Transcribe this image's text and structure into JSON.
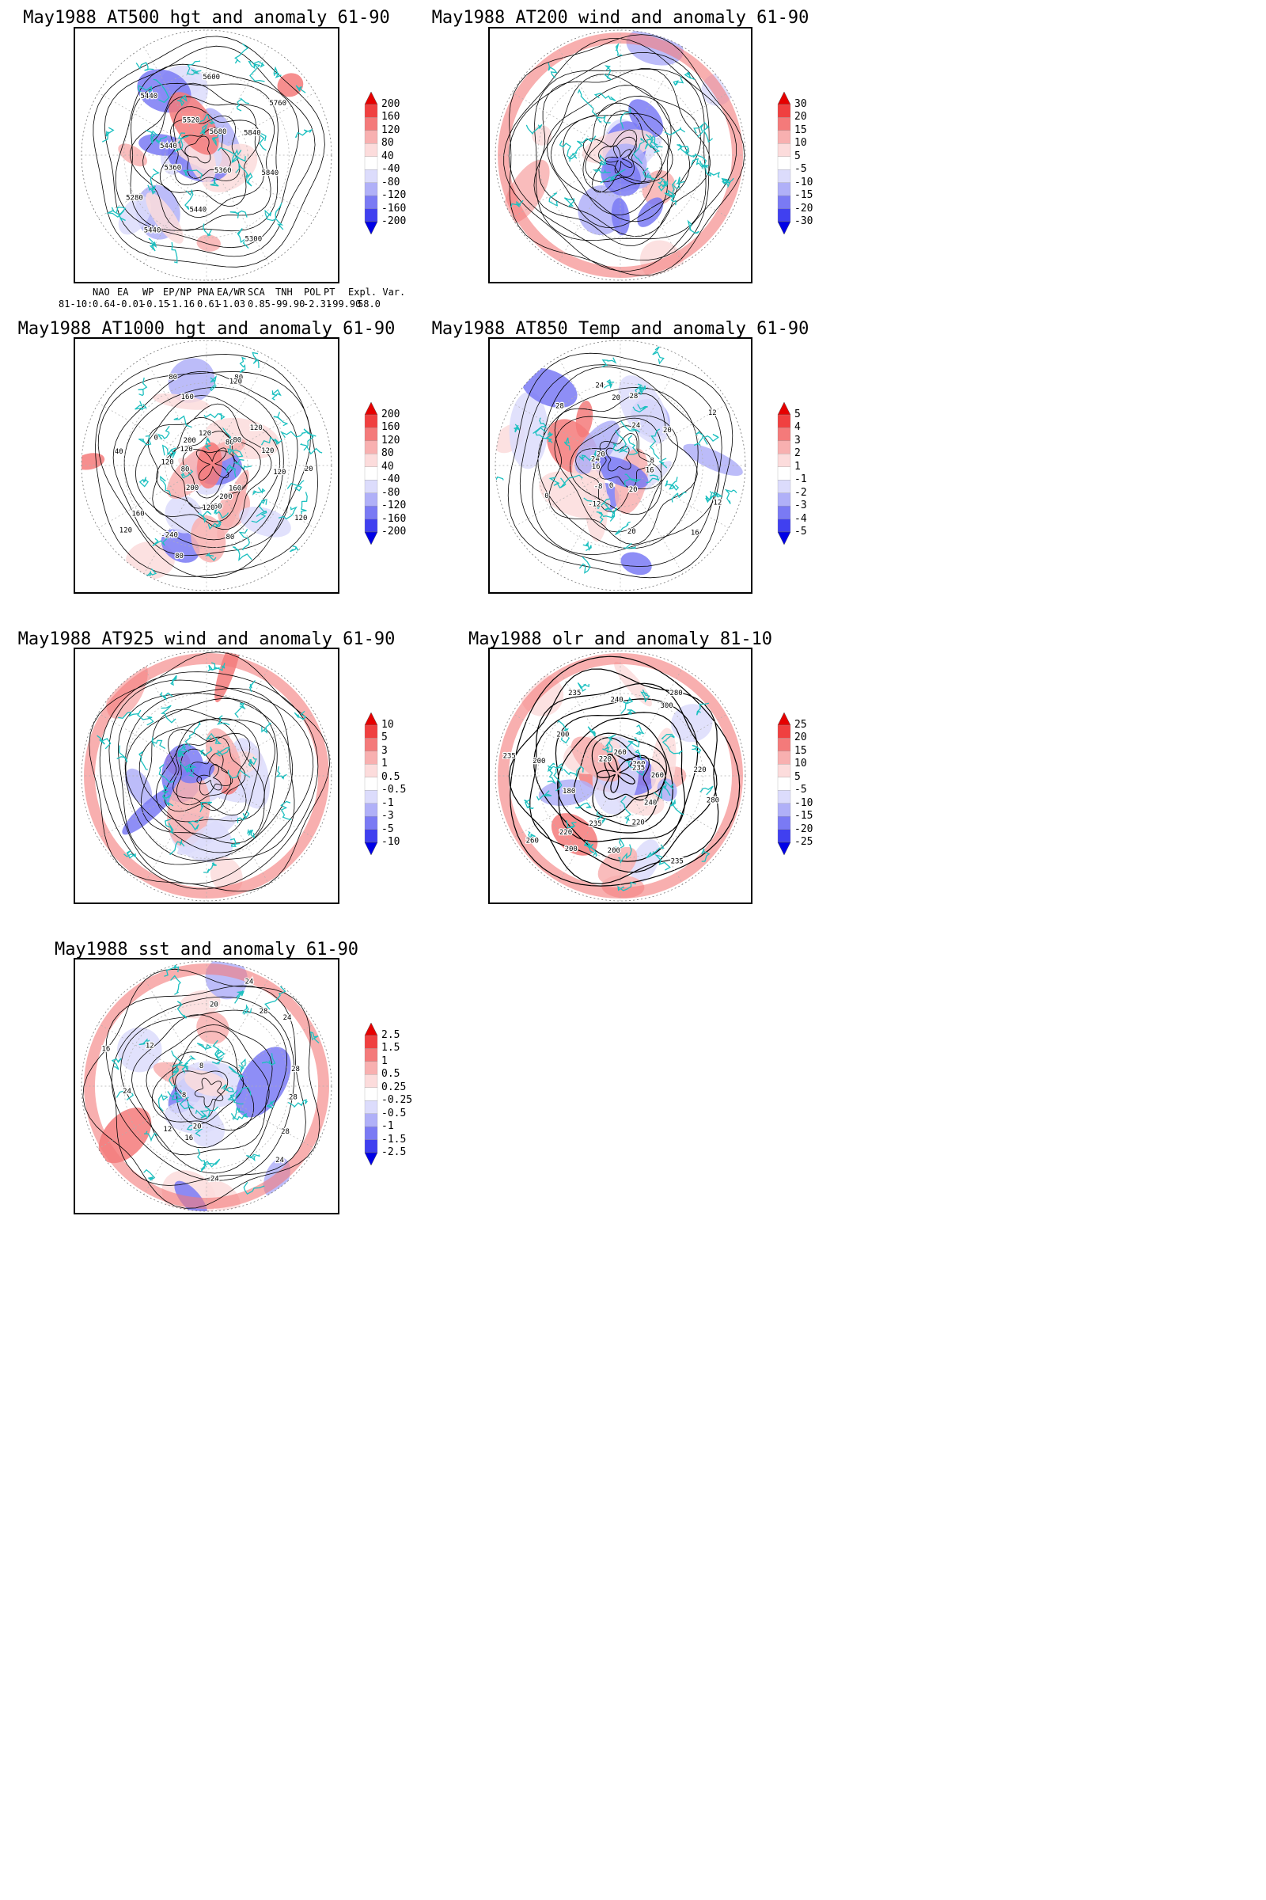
{
  "panels": [
    {
      "title": "May1988 AT500 hgt and anomaly 61-90",
      "contour_labels": [
        "5840",
        "5360",
        "5300",
        "5440",
        "5440",
        "5280",
        "5360",
        "5440",
        "5440",
        "5520",
        "5600",
        "5680",
        "5760",
        "5840"
      ],
      "colorbar_labels": [
        "200",
        "160",
        "120",
        "80",
        "40",
        "-40",
        "-80",
        "-120",
        "-160",
        "-200"
      ]
    },
    {
      "title": "May1988 AT200 wind and anomaly 61-90",
      "contour_labels": [],
      "colorbar_labels": [
        "30",
        "20",
        "15",
        "10",
        "5",
        "-5",
        "-10",
        "-15",
        "-20",
        "-30"
      ]
    },
    {
      "title": "May1988 AT1000 hgt and anomaly 61-90",
      "contour_labels": [
        "120",
        "120",
        "160",
        "200",
        "80",
        "160",
        "120",
        "80",
        "-240",
        "200",
        "120",
        "160",
        "80",
        "120",
        "40",
        "0",
        "120",
        "200",
        "160",
        "80",
        "120",
        "80",
        "120",
        "80",
        "120",
        "80",
        "120",
        "20"
      ],
      "colorbar_labels": [
        "200",
        "160",
        "120",
        "80",
        "40",
        "-40",
        "-80",
        "-120",
        "-160",
        "-200"
      ]
    },
    {
      "title": "May1988 AT850 Temp and anomaly 61-90",
      "contour_labels": [
        "16",
        "12",
        "16",
        "20",
        "20",
        "0",
        "-12",
        "-8",
        "0",
        "16",
        "24",
        "20",
        "28",
        "24",
        "20",
        "28",
        "24",
        "20",
        "12",
        "8"
      ],
      "colorbar_labels": [
        "5",
        "4",
        "3",
        "2",
        "1",
        "-1",
        "-2",
        "-3",
        "-4",
        "-5"
      ]
    },
    {
      "title": "May1988 AT925 wind and anomaly 61-90",
      "contour_labels": [],
      "colorbar_labels": [
        "10",
        "5",
        "3",
        "1",
        "0.5",
        "-0.5",
        "-1",
        "-3",
        "-5",
        "-10"
      ]
    },
    {
      "title": "May1988 olr and anomaly 81-10",
      "contour_labels": [
        "260",
        "280",
        "240",
        "235",
        "220",
        "200",
        "235",
        "200",
        "220",
        "260",
        "180",
        "200",
        "235",
        "200",
        "220",
        "235",
        "240",
        "260",
        "300",
        "280",
        "260",
        "235",
        "220"
      ],
      "colorbar_labels": [
        "25",
        "20",
        "15",
        "10",
        "5",
        "-5",
        "-10",
        "-15",
        "-20",
        "-25"
      ]
    },
    {
      "title": "May1988 sst and anomaly 61-90",
      "contour_labels": [
        "28",
        "28",
        "24",
        "24",
        "20",
        "16",
        "12",
        "8",
        "24",
        "16",
        "12",
        "8",
        "20",
        "24",
        "28",
        "24",
        "28"
      ],
      "colorbar_labels": [
        "2.5",
        "1.5",
        "1",
        "0.5",
        "0.25",
        "-0.25",
        "-0.5",
        "-1",
        "-1.5",
        "-2.5"
      ]
    }
  ],
  "teleconnections": {
    "headers": [
      "NAO",
      "EA",
      "WP",
      "EP/NP",
      "PNA",
      "EA/WR",
      "SCA",
      "TNH",
      "POL",
      "PT",
      "Expl. Var."
    ],
    "row_label": "81-10:",
    "values": [
      "0.64",
      "-0.01",
      "-0.15",
      "-1.16",
      "0.61",
      "-1.03",
      "0.85",
      "-99.90",
      "-2.31",
      "-99.90",
      "58.0"
    ]
  },
  "colors": {
    "positive_ramp": [
      "#e60000",
      "#f04040",
      "#f47a7a",
      "#f8b0b0",
      "#fcdcdc"
    ],
    "negative_ramp": [
      "#dcdcfc",
      "#b0b0f8",
      "#7a7af4",
      "#4040f0",
      "#0000e6"
    ],
    "coastline": "#1cc0c0",
    "contour": "#000000",
    "grid": "#b0b0b0"
  }
}
